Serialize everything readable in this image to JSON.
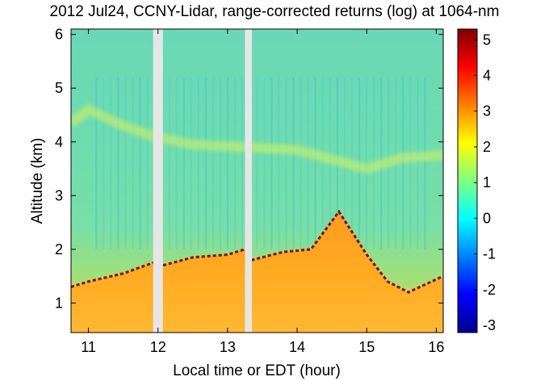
{
  "chart_data": {
    "type": "heatmap",
    "title": "2012 Jul24, CCNY-Lidar, range-corrected returns (log) at 1064-nm",
    "xlabel": "Local time or EDT (hour)",
    "ylabel": "Altitude (km)",
    "xlim": [
      10.75,
      16.1
    ],
    "ylim": [
      0.45,
      6.1
    ],
    "xticks": [
      11,
      12,
      13,
      14,
      15,
      16
    ],
    "yticks": [
      1,
      2,
      3,
      4,
      5,
      6
    ],
    "colorbar": {
      "min": -3.2,
      "max": 5.3,
      "ticks": [
        -3,
        -2,
        -1,
        0,
        1,
        2,
        3,
        4,
        5
      ],
      "colormap": "jet"
    },
    "data_gaps": [
      [
        11.93,
        12.07
      ],
      [
        13.25,
        13.35
      ]
    ],
    "boundary_layer_top_km": [
      {
        "x": 10.75,
        "y": 1.3
      },
      {
        "x": 11.0,
        "y": 1.4
      },
      {
        "x": 11.5,
        "y": 1.55
      },
      {
        "x": 11.93,
        "y": 1.75
      },
      {
        "x": 12.07,
        "y": 1.7
      },
      {
        "x": 12.5,
        "y": 1.85
      },
      {
        "x": 13.0,
        "y": 1.9
      },
      {
        "x": 13.25,
        "y": 2.0
      },
      {
        "x": 13.35,
        "y": 1.8
      },
      {
        "x": 13.8,
        "y": 1.95
      },
      {
        "x": 14.2,
        "y": 2.0
      },
      {
        "x": 14.6,
        "y": 2.7
      },
      {
        "x": 14.8,
        "y": 2.3
      },
      {
        "x": 15.0,
        "y": 1.9
      },
      {
        "x": 15.3,
        "y": 1.4
      },
      {
        "x": 15.6,
        "y": 1.2
      },
      {
        "x": 16.1,
        "y": 1.5
      }
    ],
    "elevated_layer_km": [
      {
        "x": 10.75,
        "y": 4.35
      },
      {
        "x": 11.0,
        "y": 4.6
      },
      {
        "x": 11.5,
        "y": 4.3
      },
      {
        "x": 11.93,
        "y": 4.1
      },
      {
        "x": 12.5,
        "y": 3.95
      },
      {
        "x": 13.25,
        "y": 3.9
      },
      {
        "x": 14.0,
        "y": 3.85
      },
      {
        "x": 15.0,
        "y": 3.5
      },
      {
        "x": 15.5,
        "y": 3.7
      },
      {
        "x": 16.1,
        "y": 3.75
      }
    ],
    "grid": false
  }
}
